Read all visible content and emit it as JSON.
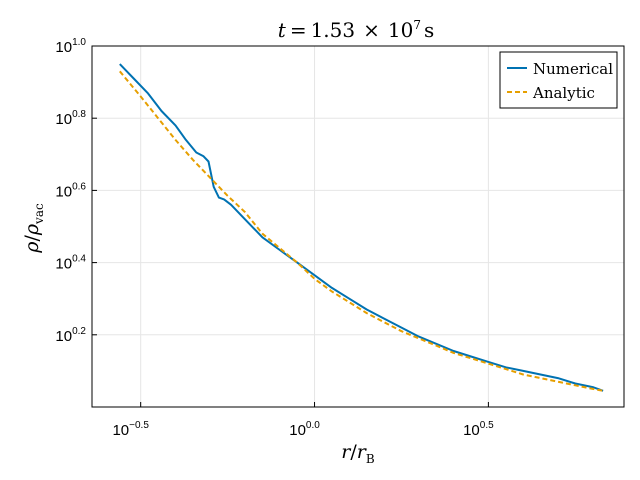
{
  "chart_data": {
    "type": "line",
    "title": "t = 1.53 × 10⁷ s",
    "title_parts": {
      "prefix": "t",
      "equals": "=",
      "mantissa": "1.53",
      "times": "×",
      "base": "10",
      "exponent": "7",
      "unit": "s"
    },
    "xlabel": "r/r_B",
    "xlabel_parts": {
      "main": "r",
      "slash": "/",
      "sym": "r",
      "sub": "B"
    },
    "ylabel": "ρ/ρ_vac",
    "ylabel_parts": {
      "main": "ρ",
      "slash": "/",
      "sym": "ρ",
      "sub": "vac"
    },
    "xscale": "log10",
    "yscale": "log10",
    "xlim_log10": [
      -0.64,
      0.89
    ],
    "ylim_log10": [
      0.0,
      1.0
    ],
    "xticks": [
      {
        "log10": -0.5,
        "base": "10",
        "exp": "−0.5"
      },
      {
        "log10": 0.0,
        "base": "10",
        "exp": "0.0"
      },
      {
        "log10": 0.5,
        "base": "10",
        "exp": "0.5"
      }
    ],
    "yticks": [
      {
        "log10": 0.2,
        "base": "10",
        "exp": "0.2"
      },
      {
        "log10": 0.4,
        "base": "10",
        "exp": "0.4"
      },
      {
        "log10": 0.6,
        "base": "10",
        "exp": "0.6"
      },
      {
        "log10": 0.8,
        "base": "10",
        "exp": "0.8"
      },
      {
        "log10": 1.0,
        "base": "10",
        "exp": "1.0"
      }
    ],
    "grid": true,
    "legend_position": "top-right",
    "series": [
      {
        "name": "Numerical",
        "color": "#0072B2",
        "style": "solid",
        "x_log10": [
          -0.56,
          -0.52,
          -0.48,
          -0.44,
          -0.4,
          -0.37,
          -0.34,
          -0.32,
          -0.305,
          -0.29,
          -0.275,
          -0.26,
          -0.24,
          -0.2,
          -0.15,
          -0.1,
          -0.05,
          0.0,
          0.05,
          0.1,
          0.15,
          0.2,
          0.25,
          0.3,
          0.35,
          0.4,
          0.45,
          0.5,
          0.55,
          0.6,
          0.65,
          0.7,
          0.75,
          0.8,
          0.83
        ],
        "y_log10": [
          0.95,
          0.91,
          0.87,
          0.82,
          0.78,
          0.74,
          0.705,
          0.695,
          0.68,
          0.61,
          0.58,
          0.575,
          0.56,
          0.52,
          0.47,
          0.435,
          0.4,
          0.365,
          0.33,
          0.3,
          0.27,
          0.245,
          0.22,
          0.195,
          0.175,
          0.155,
          0.14,
          0.125,
          0.11,
          0.1,
          0.09,
          0.08,
          0.065,
          0.055,
          0.045
        ]
      },
      {
        "name": "Analytic",
        "color": "#E69F00",
        "style": "dashed",
        "x_log10": [
          -0.56,
          -0.5,
          -0.45,
          -0.4,
          -0.35,
          -0.3,
          -0.25,
          -0.2,
          -0.15,
          -0.1,
          -0.05,
          0.0,
          0.05,
          0.1,
          0.15,
          0.2,
          0.25,
          0.3,
          0.35,
          0.4,
          0.45,
          0.5,
          0.55,
          0.6,
          0.65,
          0.7,
          0.75,
          0.8,
          0.83
        ],
        "y_log10": [
          0.93,
          0.86,
          0.8,
          0.74,
          0.685,
          0.635,
          0.585,
          0.54,
          0.48,
          0.44,
          0.4,
          0.355,
          0.32,
          0.29,
          0.26,
          0.235,
          0.21,
          0.19,
          0.17,
          0.15,
          0.135,
          0.12,
          0.105,
          0.09,
          0.08,
          0.07,
          0.06,
          0.05,
          0.045
        ]
      }
    ]
  }
}
